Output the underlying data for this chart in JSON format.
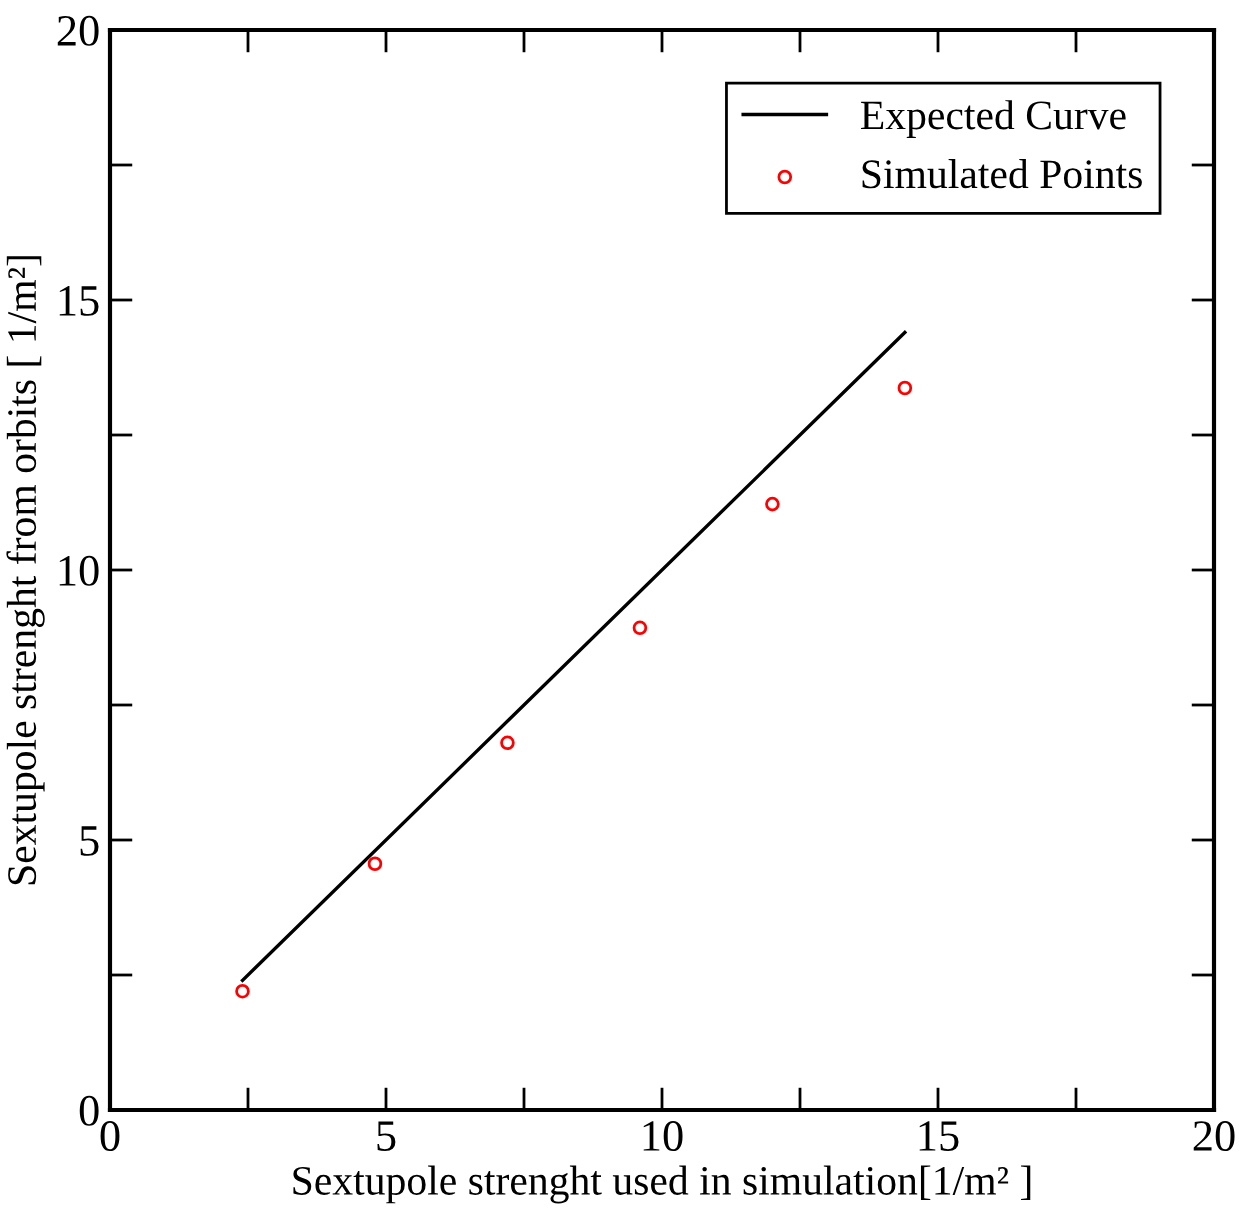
{
  "chart_data": {
    "type": "scatter",
    "xlabel": "Sextupole strenght used in simulation[1/m² ]",
    "ylabel": "Sextupole strenght from orbits [ 1/m²]",
    "xlim": [
      0,
      20
    ],
    "ylim": [
      0,
      20
    ],
    "xticks": [
      0,
      {
        "value": 2.5,
        "label": null
      },
      5,
      {
        "value": 7.5,
        "label": null
      },
      10,
      {
        "value": 12.5,
        "label": null
      },
      15,
      {
        "value": 17.5,
        "label": null
      },
      20
    ],
    "yticks": [
      0,
      {
        "value": 2.5,
        "label": null
      },
      5,
      {
        "value": 7.5,
        "label": null
      },
      10,
      {
        "value": 12.5,
        "label": null
      },
      15,
      {
        "value": 17.5,
        "label": null
      },
      20
    ],
    "grid": false,
    "legend": "top right",
    "series": [
      {
        "name": "Expected Curve",
        "type": "line",
        "color": "#000000",
        "marker": "none",
        "line_style": "solid",
        "x": [
          2.4,
          14.4
        ],
        "values": [
          2.4,
          14.4
        ]
      },
      {
        "name": "Simulated Points",
        "color": "#ff0000",
        "marker": "circle",
        "x": [
          2.4,
          4.8,
          7.2,
          9.6,
          12.0,
          14.4
        ],
        "values": [
          2.2,
          4.56,
          6.8,
          8.93,
          11.22,
          13.37
        ]
      }
    ]
  }
}
